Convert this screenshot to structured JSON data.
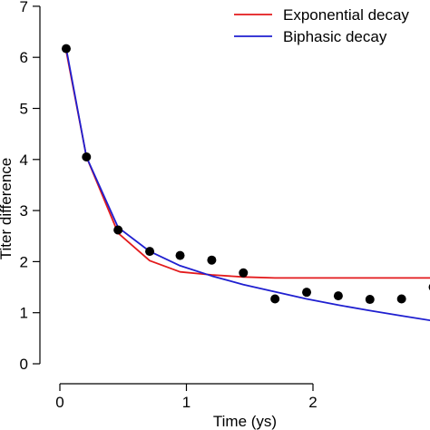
{
  "chart_data": {
    "type": "scatter",
    "title": "",
    "xlabel": "Time (ys)",
    "ylabel": "Titer difference",
    "xlim": [
      0,
      3
    ],
    "ylim": [
      0,
      7
    ],
    "x_ticks": [
      0,
      1,
      2
    ],
    "x_tick_labels": [
      "0",
      "1",
      "2"
    ],
    "y_ticks": [
      0,
      1,
      2,
      3,
      4,
      5,
      6,
      7
    ],
    "y_tick_labels": [
      "0",
      "1",
      "2",
      "3",
      "4",
      "5",
      "6",
      "7"
    ],
    "grid": false,
    "legend_position": "top-right",
    "points": {
      "x": [
        0.05,
        0.21,
        0.46,
        0.71,
        0.95,
        1.2,
        1.45,
        1.7,
        1.95,
        2.2,
        2.45,
        2.7,
        2.95
      ],
      "y": [
        6.17,
        4.05,
        2.62,
        2.2,
        2.12,
        2.03,
        1.78,
        1.27,
        1.4,
        1.33,
        1.26,
        1.27,
        1.5
      ]
    },
    "series": [
      {
        "name": "Exponential decay",
        "color": "#e31a1c",
        "x": [
          0.05,
          0.21,
          0.46,
          0.71,
          0.95,
          1.2,
          1.45,
          1.7,
          1.95,
          2.2,
          2.45,
          2.7,
          2.95
        ],
        "y": [
          6.12,
          4.05,
          2.56,
          2.02,
          1.8,
          1.74,
          1.7,
          1.68,
          1.68,
          1.68,
          1.68,
          1.68,
          1.68
        ]
      },
      {
        "name": "Biphasic decay",
        "color": "#1f1fd0",
        "x": [
          0.05,
          0.21,
          0.46,
          0.71,
          0.95,
          1.2,
          1.45,
          1.7,
          1.95,
          2.2,
          2.45,
          2.7,
          2.95
        ],
        "y": [
          6.17,
          4.05,
          2.67,
          2.2,
          1.92,
          1.72,
          1.55,
          1.41,
          1.27,
          1.15,
          1.04,
          0.94,
          0.84
        ]
      }
    ]
  }
}
